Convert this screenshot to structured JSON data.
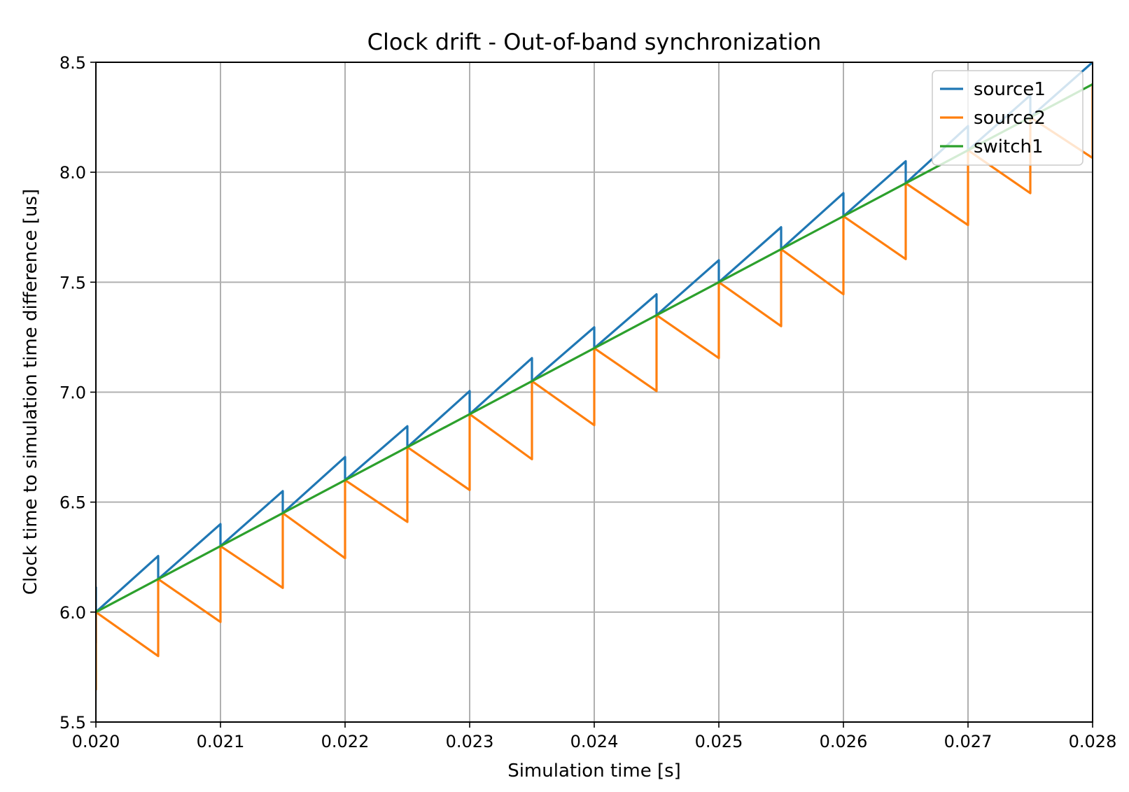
{
  "chart_data": {
    "type": "line",
    "title": "Clock drift - Out-of-band synchronization",
    "xlabel": "Simulation time [s]",
    "ylabel": "Clock time to simulation time difference [us]",
    "xlim": [
      0.02,
      0.028
    ],
    "ylim": [
      5.5,
      8.5
    ],
    "xticks": [
      0.02,
      0.021,
      0.022,
      0.023,
      0.024,
      0.025,
      0.026,
      0.027,
      0.028
    ],
    "xtick_labels": [
      "0.020",
      "0.021",
      "0.022",
      "0.023",
      "0.024",
      "0.025",
      "0.026",
      "0.027",
      "0.028"
    ],
    "yticks": [
      5.5,
      6.0,
      6.5,
      7.0,
      7.5,
      8.0,
      8.5
    ],
    "ytick_labels": [
      "5.5",
      "6.0",
      "6.5",
      "7.0",
      "7.5",
      "8.0",
      "8.5"
    ],
    "grid": true,
    "legend_position": "top-right",
    "series": [
      {
        "name": "source1",
        "color": "#1f77b4",
        "x": [
          0.02,
          0.02,
          0.02,
          0.0205,
          0.0205,
          0.021,
          0.021,
          0.0215,
          0.0215,
          0.022,
          0.022,
          0.0225,
          0.0225,
          0.023,
          0.023,
          0.0235,
          0.0235,
          0.024,
          0.024,
          0.0245,
          0.0245,
          0.025,
          0.025,
          0.0255,
          0.0255,
          0.026,
          0.026,
          0.0265,
          0.0265,
          0.027,
          0.027,
          0.0275,
          0.0275,
          0.028
        ],
        "y": [
          6.11,
          5.86,
          6.0,
          6.255,
          6.15,
          6.4,
          6.3,
          6.55,
          6.45,
          6.705,
          6.6,
          6.845,
          6.75,
          7.005,
          6.9,
          7.155,
          7.05,
          7.295,
          7.2,
          7.445,
          7.35,
          7.6,
          7.5,
          7.75,
          7.65,
          7.905,
          7.8,
          8.05,
          7.95,
          8.21,
          8.1,
          8.35,
          8.25,
          8.5
        ]
      },
      {
        "name": "source2",
        "color": "#ff7f0e",
        "x": [
          0.02,
          0.02,
          0.0205,
          0.0205,
          0.021,
          0.021,
          0.0215,
          0.0215,
          0.022,
          0.022,
          0.0225,
          0.0225,
          0.023,
          0.023,
          0.0235,
          0.0235,
          0.024,
          0.024,
          0.0245,
          0.0245,
          0.025,
          0.025,
          0.0255,
          0.0255,
          0.026,
          0.026,
          0.0265,
          0.0265,
          0.027,
          0.027,
          0.0275,
          0.0275,
          0.028,
          0.028
        ],
        "y": [
          5.65,
          6.0,
          5.8,
          6.15,
          5.955,
          6.3,
          6.11,
          6.45,
          6.245,
          6.6,
          6.41,
          6.75,
          6.555,
          6.9,
          6.695,
          7.05,
          6.85,
          7.2,
          7.005,
          7.35,
          7.155,
          7.5,
          7.3,
          7.65,
          7.445,
          7.8,
          7.605,
          7.95,
          7.76,
          8.1,
          7.905,
          8.25,
          8.065,
          8.4
        ]
      },
      {
        "name": "switch1",
        "color": "#2ca02c",
        "x": [
          0.02,
          0.028
        ],
        "y": [
          6.0,
          8.4
        ]
      }
    ]
  }
}
